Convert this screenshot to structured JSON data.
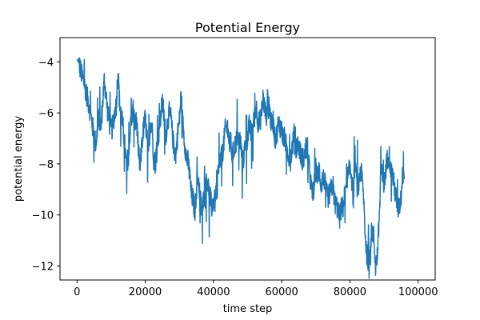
{
  "chart_data": {
    "type": "line",
    "title": "Potential Energy",
    "xlabel": "time step",
    "ylabel": "potential energy",
    "xlim": [
      -5000,
      105000
    ],
    "ylim": [
      -12.55,
      -3.05
    ],
    "x_ticks": [
      0,
      20000,
      40000,
      60000,
      80000,
      100000
    ],
    "x_tick_labels": [
      "0",
      "20000",
      "40000",
      "60000",
      "80000",
      "100000"
    ],
    "y_ticks": [
      -12,
      -10,
      -8,
      -6,
      -4
    ],
    "y_tick_labels": [
      "−12",
      "−10",
      "−8",
      "−6",
      "−4"
    ],
    "grid": false,
    "legend": "none",
    "series": [
      {
        "color": "#1f77b4",
        "x_start": 0,
        "x_step": 500,
        "values": [
          -3.9,
          -4.05,
          -4.3,
          -4.6,
          -4.85,
          -5.1,
          -5.4,
          -5.7,
          -6.1,
          -6.5,
          -6.9,
          -7.2,
          -6.7,
          -6.2,
          -6.6,
          -5.6,
          -4.7,
          -5.3,
          -6.0,
          -6.4,
          -6.7,
          -6.5,
          -6.0,
          -5.7,
          -4.3,
          -5.7,
          -6.1,
          -6.6,
          -7.3,
          -8.1,
          -7.7,
          -6.8,
          -6.2,
          -5.8,
          -6.5,
          -6.3,
          -7.5,
          -8.2,
          -7.2,
          -6.6,
          -6.2,
          -7.0,
          -7.6,
          -6.3,
          -6.6,
          -7.8,
          -8.0,
          -7.0,
          -6.8,
          -6.2,
          -5.5,
          -6.2,
          -6.9,
          -6.4,
          -6.0,
          -6.2,
          -6.9,
          -7.5,
          -7.6,
          -6.8,
          -6.3,
          -5.3,
          -6.4,
          -7.1,
          -7.7,
          -7.9,
          -8.4,
          -9.2,
          -9.4,
          -9.9,
          -9.0,
          -8.5,
          -9.1,
          -9.8,
          -9.5,
          -8.9,
          -8.5,
          -8.9,
          -9.3,
          -9.7,
          -9.4,
          -9.5,
          -8.6,
          -8.3,
          -7.9,
          -7.7,
          -7.2,
          -6.6,
          -6.6,
          -7.0,
          -7.1,
          -7.7,
          -7.4,
          -7.2,
          -6.9,
          -7.0,
          -7.2,
          -8.0,
          -7.6,
          -7.1,
          -7.0,
          -6.5,
          -6.8,
          -6.6,
          -6.2,
          -5.7,
          -6.3,
          -6.4,
          -6.1,
          -5.4,
          -5.8,
          -6.2,
          -5.1,
          -6.0,
          -6.5,
          -6.3,
          -7.0,
          -6.9,
          -6.4,
          -6.5,
          -6.7,
          -7.0,
          -7.0,
          -7.5,
          -7.6,
          -7.9,
          -7.4,
          -7.0,
          -7.5,
          -7.2,
          -7.3,
          -7.6,
          -7.8,
          -7.8,
          -7.5,
          -7.3,
          -8.1,
          -8.7,
          -9.3,
          -8.9,
          -8.2,
          -8.5,
          -8.2,
          -8.8,
          -8.6,
          -8.6,
          -9.1,
          -9.3,
          -9.2,
          -9.0,
          -8.8,
          -9.5,
          -9.6,
          -9.8,
          -10.1,
          -9.7,
          -9.7,
          -9.1,
          -8.4,
          -8.6,
          -8.0,
          -8.5,
          -9.4,
          -7.7,
          -8.8,
          -9.0,
          -8.2,
          -8.5,
          -9.3,
          -10.8,
          -11.6,
          -11.6,
          -11.0,
          -10.6,
          -10.9,
          -12.0,
          -11.6,
          -10.4,
          -8.3,
          -8.5,
          -8.9,
          -8.2,
          -7.8,
          -7.6,
          -8.3,
          -8.4,
          -8.9,
          -9.3,
          -9.8,
          -9.6,
          -9.3,
          -8.3,
          -8.5
        ]
      }
    ]
  }
}
